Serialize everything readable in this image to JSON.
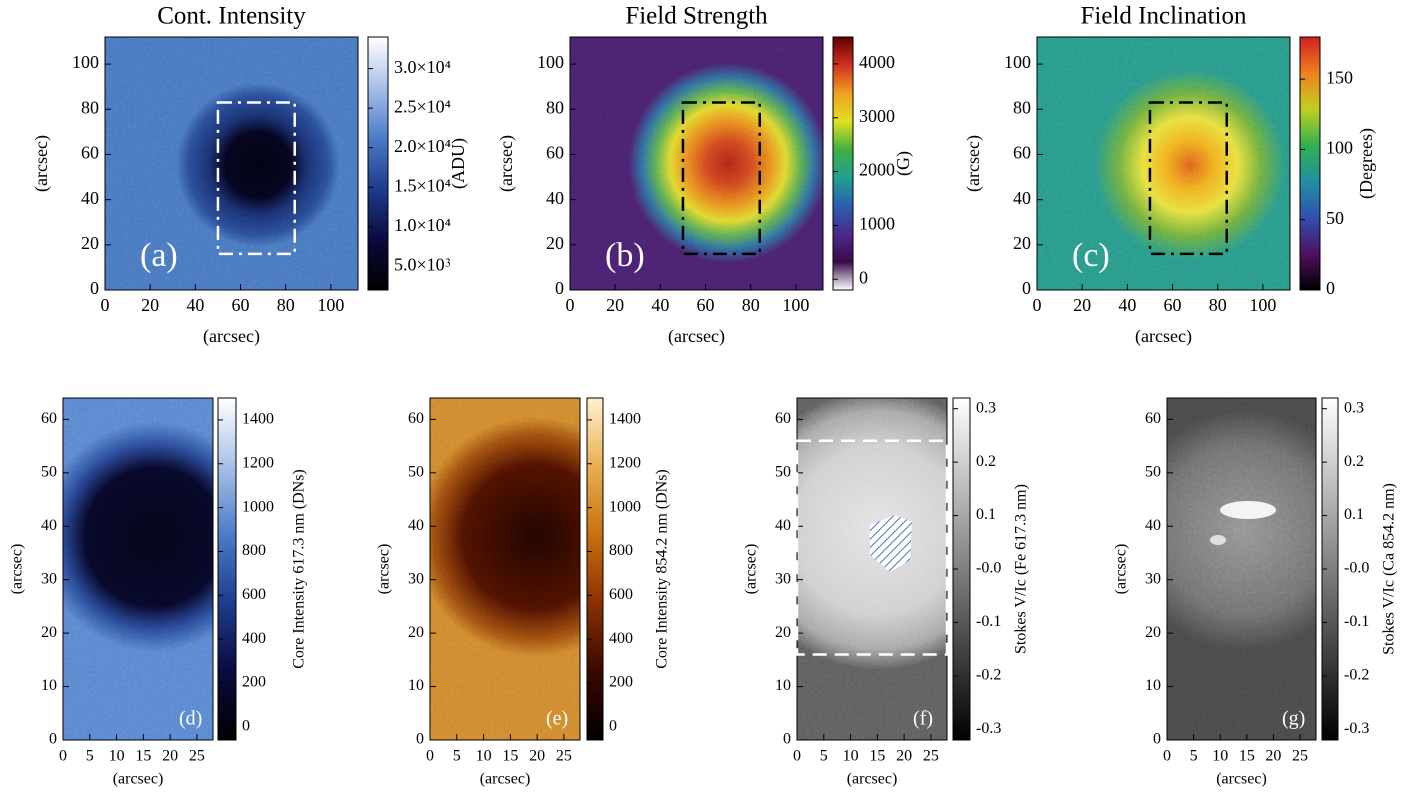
{
  "chart_data": [
    {
      "type": "heatmap",
      "title": "Cont. Intensity",
      "panel_label": "(a)",
      "xlabel": "(arcsec)",
      "ylabel": "(arcsec)",
      "xlim": [
        0,
        112
      ],
      "ylim": [
        0,
        112
      ],
      "xticks": [
        0,
        20,
        40,
        60,
        80,
        100
      ],
      "yticks": [
        0,
        20,
        40,
        60,
        80,
        100
      ],
      "box": {
        "x": [
          50,
          84
        ],
        "y": [
          16,
          83
        ],
        "color": "#ffffff",
        "style": "dashdot"
      },
      "colorbar": {
        "label": "(ADU)",
        "lim": [
          2000,
          34000
        ],
        "colormap": [
          "#000000",
          "#0a0a40",
          "#1e3c8c",
          "#4a7cc8",
          "#a8c0e8",
          "#ffffff"
        ],
        "ticks": [
          {
            "value": 5000,
            "label": "5.0×10⁳"
          },
          {
            "value": 10000,
            "label": "1.0×10⁴"
          },
          {
            "value": 15000,
            "label": "1.5×10⁴"
          },
          {
            "value": 20000,
            "label": "2.0×10⁴"
          },
          {
            "value": 25000,
            "label": "2.5×10⁴"
          },
          {
            "value": 30000,
            "label": "3.0×10⁴"
          }
        ]
      }
    },
    {
      "type": "heatmap",
      "title": "Field Strength",
      "panel_label": "(b)",
      "xlabel": "(arcsec)",
      "ylabel": "(arcsec)",
      "xlim": [
        0,
        112
      ],
      "ylim": [
        0,
        112
      ],
      "xticks": [
        0,
        20,
        40,
        60,
        80,
        100
      ],
      "yticks": [
        0,
        20,
        40,
        60,
        80,
        100
      ],
      "box": {
        "x": [
          50,
          84
        ],
        "y": [
          16,
          83
        ],
        "color": "#000000",
        "style": "dashdot"
      },
      "colorbar": {
        "label": "(G)",
        "lim": [
          -200,
          4500
        ],
        "colormap": [
          "#ffffff",
          "#3a0a4a",
          "#4a2a8a",
          "#2a60b0",
          "#20a090",
          "#40b040",
          "#e0e020",
          "#f0a020",
          "#d03020",
          "#600000"
        ],
        "ticks": [
          0,
          1000,
          2000,
          3000,
          4000
        ]
      }
    },
    {
      "type": "heatmap",
      "title": "Field Inclination",
      "panel_label": "(c)",
      "xlabel": "(arcsec)",
      "ylabel": "(arcsec)",
      "xlim": [
        0,
        112
      ],
      "ylim": [
        0,
        112
      ],
      "xticks": [
        0,
        20,
        40,
        60,
        80,
        100
      ],
      "yticks": [
        0,
        20,
        40,
        60,
        80,
        100
      ],
      "box": {
        "x": [
          50,
          84
        ],
        "y": [
          16,
          83
        ],
        "color": "#000000",
        "style": "dashdot"
      },
      "colorbar": {
        "label": "(Degrees)",
        "lim": [
          0,
          180
        ],
        "colormap": [
          "#000000",
          "#501060",
          "#3050b0",
          "#2090a0",
          "#30b050",
          "#c0d020",
          "#f08020",
          "#d02020"
        ],
        "ticks": [
          0,
          50,
          100,
          150
        ]
      }
    },
    {
      "type": "heatmap",
      "panel_label": "(d)",
      "xlabel": "(arcsec)",
      "ylabel": "(arcsec)",
      "xlim": [
        0,
        28
      ],
      "ylim": [
        0,
        64
      ],
      "xticks": [
        0,
        5,
        10,
        15,
        20,
        25
      ],
      "yticks": [
        0,
        10,
        20,
        30,
        40,
        50,
        60
      ],
      "colorbar": {
        "label": "Core Intensity 617.3 nm (DNs)",
        "lim": [
          -60,
          1500
        ],
        "colormap": [
          "#000000",
          "#0a0a40",
          "#1e3c8c",
          "#4a7cc8",
          "#a8c0e8",
          "#ffffff"
        ],
        "ticks": [
          0,
          200,
          400,
          600,
          800,
          1000,
          1200,
          1400
        ]
      }
    },
    {
      "type": "heatmap",
      "panel_label": "(e)",
      "xlabel": "(arcsec)",
      "ylabel": "(arcsec)",
      "xlim": [
        0,
        28
      ],
      "ylim": [
        0,
        64
      ],
      "xticks": [
        0,
        5,
        10,
        15,
        20,
        25
      ],
      "yticks": [
        0,
        10,
        20,
        30,
        40,
        50,
        60
      ],
      "colorbar": {
        "label": "Core Intensity 854.2 nm (DNs)",
        "lim": [
          -60,
          1500
        ],
        "colormap": [
          "#000000",
          "#3a0800",
          "#8a3000",
          "#c87010",
          "#e8b050",
          "#fff0d0"
        ],
        "ticks": [
          0,
          200,
          400,
          600,
          800,
          1000,
          1200,
          1400
        ]
      }
    },
    {
      "type": "heatmap",
      "panel_label": "(f)",
      "xlabel": "(arcsec)",
      "ylabel": "(arcsec)",
      "xlim": [
        0,
        28
      ],
      "ylim": [
        0,
        64
      ],
      "xticks": [
        0,
        5,
        10,
        15,
        20,
        25
      ],
      "yticks": [
        0,
        10,
        20,
        30,
        40,
        50,
        60
      ],
      "box": {
        "x": [
          0,
          28
        ],
        "y": [
          16,
          56
        ],
        "color": "#ffffff",
        "style": "dashed"
      },
      "colorbar": {
        "label": "Stokes V/Ic (Fe 617.3 nm)",
        "lim": [
          -0.32,
          0.32
        ],
        "colormap": [
          "#000000",
          "#ffffff"
        ],
        "ticks": [
          -0.3,
          -0.2,
          -0.1,
          {
            "value": 0,
            "label": "-0.0"
          },
          0.1,
          0.2,
          0.3
        ]
      }
    },
    {
      "type": "heatmap",
      "panel_label": "(g)",
      "xlabel": "(arcsec)",
      "ylabel": "(arcsec)",
      "xlim": [
        0,
        28
      ],
      "ylim": [
        0,
        64
      ],
      "xticks": [
        0,
        5,
        10,
        15,
        20,
        25
      ],
      "yticks": [
        0,
        10,
        20,
        30,
        40,
        50,
        60
      ],
      "colorbar": {
        "label": "Stokes V/Ic (Ca 854.2 nm)",
        "lim": [
          -0.32,
          0.32
        ],
        "colormap": [
          "#000000",
          "#ffffff"
        ],
        "ticks": [
          -0.3,
          -0.2,
          -0.1,
          {
            "value": 0,
            "label": "-0.0"
          },
          0.1,
          0.2,
          0.3
        ]
      }
    }
  ]
}
